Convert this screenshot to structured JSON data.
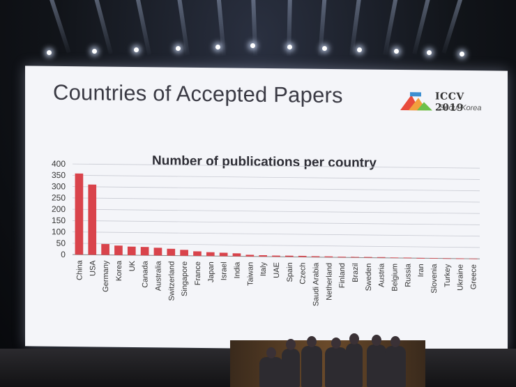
{
  "slide": {
    "title": "Countries of Accepted Papers",
    "logo": {
      "name": "ICCV 2019",
      "location": "Seoul Korea",
      "colors": [
        "#e84b3c",
        "#f2a03d",
        "#6cc04a",
        "#3d8fd1"
      ]
    }
  },
  "chart_data": {
    "type": "bar",
    "title": "Number of publications per country",
    "xlabel": "",
    "ylabel": "",
    "ylim": [
      0,
      400
    ],
    "yticks": [
      0,
      50,
      100,
      150,
      200,
      250,
      300,
      350,
      400
    ],
    "grid": true,
    "bar_color": "#d9434b",
    "categories": [
      "China",
      "USA",
      "Germany",
      "Korea",
      "UK",
      "Canada",
      "Australia",
      "Switzerland",
      "Singapore",
      "France",
      "Japan",
      "Israel",
      "India",
      "Taiwan",
      "Italy",
      "UAE",
      "Spain",
      "Czech",
      "Saudi Arabia",
      "Netherland",
      "Finland",
      "Brazil",
      "Sweden",
      "Austria",
      "Belgium",
      "Russia",
      "Iran",
      "Slovenia",
      "Turkey",
      "Ukraine",
      "Greece"
    ],
    "values": [
      358,
      310,
      48,
      42,
      38,
      37,
      34,
      30,
      26,
      20,
      17,
      15,
      13,
      7,
      6,
      5,
      5,
      5,
      4,
      4,
      3,
      3,
      3,
      3,
      2,
      2,
      1,
      1,
      1,
      1,
      1
    ]
  }
}
